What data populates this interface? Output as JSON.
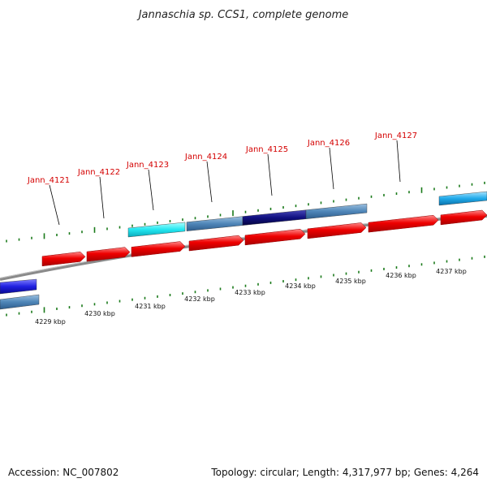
{
  "title": "Jannaschia sp. CCS1, complete genome",
  "footer": {
    "accession": "Accession: NC_007802",
    "topology": "Topology: circular; Length: 4,317,977 bp; Genes: 4,264"
  },
  "colors": {
    "backbone": "#8a8a8a",
    "forward_cds": "#e60000",
    "reverse_cyan": "#22e6f0",
    "reverse_steel": "#4f86b8",
    "reverse_navy": "#101080",
    "reverse_blue": "#1f1fe0",
    "reverse_sky": "#20aaea",
    "tick": "#1a7a1a",
    "label": "#d40000"
  },
  "scale_labels": [
    "4229 kbp",
    "4230 kbp",
    "4231 kbp",
    "4232 kbp",
    "4233 kbp",
    "4234 kbp",
    "4235 kbp",
    "4236 kbp",
    "4237 kbp"
  ],
  "genes": [
    {
      "label": "Jann_4121"
    },
    {
      "label": "Jann_4122"
    },
    {
      "label": "Jann_4123"
    },
    {
      "label": "Jann_4124"
    },
    {
      "label": "Jann_4125"
    },
    {
      "label": "Jann_4126"
    },
    {
      "label": "Jann_4127"
    }
  ]
}
